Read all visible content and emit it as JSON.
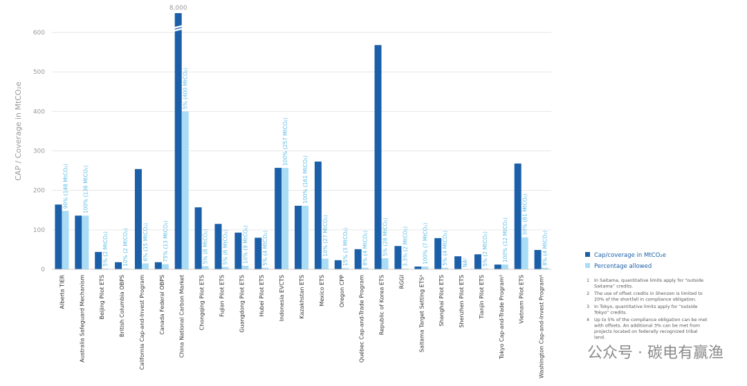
{
  "chart_data": {
    "type": "bar",
    "ylabel": "CAP / Coverage in MtCO₂e",
    "categories": [
      "Alberta TIER",
      "Australia Safeguard Mechanism",
      "Beijing Pilot ETS",
      "British Columbia OBPS",
      "California Cap-and-Invest Program",
      "Canada Federal OBPS",
      "China National Carbon Market",
      "Chongqing Pilot ETS",
      "Fujian Pilot ETS",
      "Guangdong Pilot ETS",
      "Hubei Pilot ETS",
      "Indonesia EVCTS",
      "Kazakhstan ETS",
      "Mexico ETS",
      "Oregon CPP",
      "Québec Cap-and-Trade Program",
      "Republic of Korea ETS",
      "RGGI",
      "Saitama Target Setting ETS¹",
      "Shanghai Pilot ETS",
      "Shenzhen Pilot ETS",
      "Tianjin Pilot ETS",
      "Tokyo Cap-and-Trade Program³",
      "Vietnam Pilot ETS",
      "Washington Cap-and-Invest Program⁴"
    ],
    "series": [
      {
        "name": "Cap/coverage in MtCO₂e",
        "color": "#1b5fa8",
        "values": [
          164,
          136,
          44,
          18,
          254,
          18,
          8000,
          157,
          115,
          93,
          80,
          257,
          161,
          273,
          23,
          51,
          568,
          59,
          7,
          79,
          33,
          38,
          12,
          268,
          49
        ],
        "value_labels": [
          null,
          null,
          null,
          null,
          null,
          null,
          "8,000",
          null,
          null,
          null,
          null,
          null,
          null,
          null,
          null,
          null,
          null,
          null,
          null,
          null,
          null,
          null,
          null,
          null,
          null
        ]
      },
      {
        "name": "Percentage allowed",
        "color": "#a9dcf5",
        "values": [
          148,
          136,
          2,
          2,
          15,
          13,
          400,
          8,
          6,
          9,
          4,
          257,
          161,
          27,
          3,
          4,
          28,
          2,
          7,
          4,
          null,
          2,
          12,
          81,
          4
        ],
        "value_labels": [
          "90% (148 MtCO₂)",
          "100% (136 MtCO₂)",
          "5% (2 MtCO₂)",
          "10% (2 MtCO₂)",
          "6% (15 MtCO₂)",
          "75% (13 MtCO₂)",
          "5% (400 MtCO₂)",
          "5% (8 MtCO₂)",
          "5% (6 MtCO₂)",
          "10% (9 MtCO₂)",
          "5% (4 MtCO₂)",
          "100% (257 MtCO₂)",
          "100% (161 MtCO₂)",
          "10% (27 MtCO₂)",
          "15% (3 MtCO₂)",
          "8% (4 MtCO₂)",
          "5% (28 MtCO₂)",
          "3.3% (2 MtCO₂)",
          "100% (7 MtCO₂)",
          "5% (4 MtCO₂)",
          "NA²",
          "5% (2 MtCO₂)",
          "100% (12 MtCO₂)",
          "30% (81 MtCO₂)",
          "8% (4 MtCO₂)"
        ]
      }
    ],
    "ylim": [
      0,
      600
    ],
    "yticks": [
      0,
      100,
      200,
      300,
      400,
      500,
      600
    ],
    "grid": true,
    "footnotes": [
      {
        "num": "1",
        "text": "In Saitama, quantitative limits apply for “outside Saitama” credits."
      },
      {
        "num": "2",
        "text": "The use of offset credits in Shenzen is limited to 20% of the shortfall in compliance obligation."
      },
      {
        "num": "3",
        "text": "In Tokyo, quantitative limits apply for “outside Tokyo” credits."
      },
      {
        "num": "4",
        "text": "Up to 5% of the compliance obligation can be met with offsets. An additional 3% can be met from projects located on federally recognized tribal land."
      }
    ],
    "watermark": "公众号 · 碳电有赢渔"
  }
}
